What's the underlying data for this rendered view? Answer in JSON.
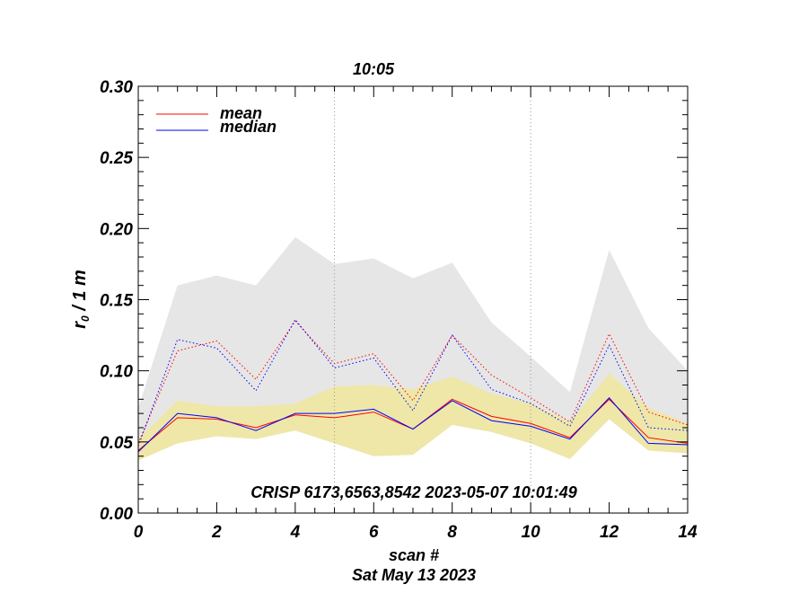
{
  "chart_data": {
    "type": "line",
    "title": "10:05",
    "xlabel": "scan #",
    "ylabel_main": "r",
    "ylabel_sub": "0",
    "ylabel_tail": " / 1 m",
    "subtitle": "Sat May 13 2023",
    "annotation": "CRISP 6173,6563,8542 2023-05-07 10:01:49",
    "xlim": [
      0,
      14
    ],
    "ylim": [
      0.0,
      0.3
    ],
    "xticks": [
      0,
      2,
      4,
      6,
      8,
      10,
      12,
      14
    ],
    "xtick_labels": [
      "0",
      "2",
      "4",
      "6",
      "8",
      "10",
      "12",
      "14"
    ],
    "yticks": [
      0.0,
      0.05,
      0.1,
      0.15,
      0.2,
      0.25,
      0.3
    ],
    "ytick_labels": [
      "0.00",
      "0.05",
      "0.10",
      "0.15",
      "0.20",
      "0.25",
      "0.30"
    ],
    "vlines": [
      5,
      10
    ],
    "x": [
      0,
      1,
      2,
      3,
      4,
      5,
      6,
      7,
      8,
      9,
      10,
      11,
      12,
      13,
      14
    ],
    "bands": [
      {
        "name": "max-range",
        "color": "#e6e6e6",
        "upper": [
          0.074,
          0.16,
          0.167,
          0.16,
          0.194,
          0.175,
          0.179,
          0.165,
          0.176,
          0.134,
          0.11,
          0.085,
          0.185,
          0.13,
          0.1
        ],
        "lower": [
          0.037,
          0.049,
          0.054,
          0.052,
          0.058,
          0.049,
          0.04,
          0.041,
          0.062,
          0.057,
          0.049,
          0.038,
          0.066,
          0.044,
          0.042
        ]
      },
      {
        "name": "quartile-range",
        "color": "#eee7a8",
        "upper": [
          0.052,
          0.079,
          0.075,
          0.075,
          0.077,
          0.089,
          0.09,
          0.087,
          0.096,
          0.084,
          0.077,
          0.064,
          0.098,
          0.074,
          0.063
        ],
        "lower": [
          0.037,
          0.049,
          0.054,
          0.052,
          0.058,
          0.049,
          0.04,
          0.041,
          0.062,
          0.057,
          0.049,
          0.038,
          0.066,
          0.044,
          0.042
        ]
      }
    ],
    "series": [
      {
        "name": "mean",
        "color": "#ff0000",
        "style": "solid",
        "values": [
          0.044,
          0.067,
          0.066,
          0.06,
          0.069,
          0.067,
          0.071,
          0.059,
          0.08,
          0.068,
          0.063,
          0.053,
          0.08,
          0.053,
          0.049
        ]
      },
      {
        "name": "median",
        "color": "#0000ff",
        "style": "solid",
        "values": [
          0.043,
          0.07,
          0.067,
          0.058,
          0.07,
          0.07,
          0.073,
          0.059,
          0.079,
          0.065,
          0.061,
          0.052,
          0.081,
          0.049,
          0.048
        ]
      },
      {
        "name": "mean-upper",
        "color": "#ff0000",
        "style": "dotted",
        "values": [
          0.049,
          0.114,
          0.121,
          0.094,
          0.135,
          0.105,
          0.112,
          0.079,
          0.125,
          0.097,
          0.081,
          0.064,
          0.126,
          0.071,
          0.062
        ]
      },
      {
        "name": "median-upper",
        "color": "#0000ff",
        "style": "dotted",
        "values": [
          0.047,
          0.122,
          0.116,
          0.086,
          0.136,
          0.102,
          0.109,
          0.072,
          0.125,
          0.087,
          0.077,
          0.061,
          0.118,
          0.06,
          0.058
        ]
      }
    ],
    "legend": [
      {
        "label": "mean",
        "color": "#ff0000"
      },
      {
        "label": "median",
        "color": "#0000ff"
      }
    ],
    "legend_position": "top-left"
  }
}
